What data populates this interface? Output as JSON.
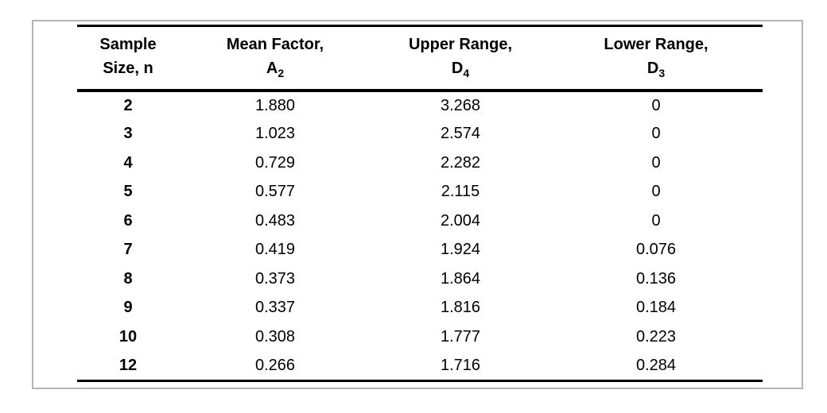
{
  "colors": {
    "panel_border": "#b4b4b4",
    "rule": "#000000",
    "text": "#000000",
    "background": "#ffffff"
  },
  "table": {
    "headers": [
      {
        "line1": "Sample",
        "line2": "Size, n"
      },
      {
        "line1": "Mean Factor,",
        "symbol": "A",
        "subscript": "2"
      },
      {
        "line1": "Upper Range,",
        "symbol": "D",
        "subscript": "4"
      },
      {
        "line1": "Lower Range,",
        "symbol": "D",
        "subscript": "3"
      }
    ],
    "rows": [
      {
        "n": "2",
        "a2": "1.880",
        "d4": "3.268",
        "d3": "0"
      },
      {
        "n": "3",
        "a2": "1.023",
        "d4": "2.574",
        "d3": "0"
      },
      {
        "n": "4",
        "a2": "0.729",
        "d4": "2.282",
        "d3": "0"
      },
      {
        "n": "5",
        "a2": "0.577",
        "d4": "2.115",
        "d3": "0"
      },
      {
        "n": "6",
        "a2": "0.483",
        "d4": "2.004",
        "d3": "0"
      },
      {
        "n": "7",
        "a2": "0.419",
        "d4": "1.924",
        "d3": "0.076"
      },
      {
        "n": "8",
        "a2": "0.373",
        "d4": "1.864",
        "d3": "0.136"
      },
      {
        "n": "9",
        "a2": "0.337",
        "d4": "1.816",
        "d3": "0.184"
      },
      {
        "n": "10",
        "a2": "0.308",
        "d4": "1.777",
        "d3": "0.223"
      },
      {
        "n": "12",
        "a2": "0.266",
        "d4": "1.716",
        "d3": "0.284"
      }
    ]
  },
  "chart_data": {
    "type": "table",
    "columns": [
      "Sample Size, n",
      "Mean Factor, A2",
      "Upper Range, D4",
      "Lower Range, D3"
    ],
    "rows": [
      [
        2,
        1.88,
        3.268,
        0
      ],
      [
        3,
        1.023,
        2.574,
        0
      ],
      [
        4,
        0.729,
        2.282,
        0
      ],
      [
        5,
        0.577,
        2.115,
        0
      ],
      [
        6,
        0.483,
        2.004,
        0
      ],
      [
        7,
        0.419,
        1.924,
        0.076
      ],
      [
        8,
        0.373,
        1.864,
        0.136
      ],
      [
        9,
        0.337,
        1.816,
        0.184
      ],
      [
        10,
        0.308,
        1.777,
        0.223
      ],
      [
        12,
        0.266,
        1.716,
        0.284
      ]
    ]
  }
}
